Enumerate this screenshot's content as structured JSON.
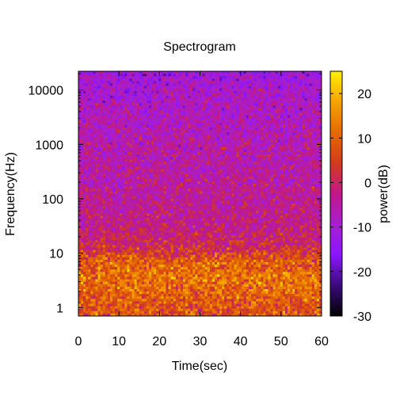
{
  "chart_data": {
    "type": "heatmap",
    "title": "Spectrogram",
    "xlabel": "Time(sec)",
    "ylabel": "Frequency(Hz)",
    "colorbar_label": "power(dB)",
    "x_range": [
      0,
      60
    ],
    "y_range": [
      0.7,
      22050
    ],
    "y_scale": "log",
    "color_range": [
      -30,
      25
    ],
    "x_ticks": [
      0,
      10,
      20,
      30,
      40,
      50,
      60
    ],
    "x_tick_labels": [
      "0",
      "10",
      "20",
      "30",
      "40",
      "50",
      "60"
    ],
    "y_ticks": [
      1,
      10,
      100,
      1000,
      10000
    ],
    "y_tick_labels": [
      "1",
      "10",
      "100",
      "1000",
      "10000"
    ],
    "colorbar_ticks": [
      -30,
      -20,
      -10,
      0,
      10,
      20
    ],
    "colorbar_tick_labels": [
      "-30",
      "-20",
      "-10",
      "0",
      "10",
      "20"
    ],
    "colormap": [
      "#000000",
      "#3b0a7a",
      "#8a17ff",
      "#a81fd0",
      "#c1188a",
      "#d23b1e",
      "#e56a00",
      "#f5a300",
      "#fff000"
    ],
    "power_profile_db": {
      "frequency_hz": [
        1,
        3,
        7,
        12,
        25,
        100,
        1000,
        10000,
        22050
      ],
      "mean_power_db": [
        8,
        12,
        10,
        2,
        -2,
        -4,
        -6,
        -9,
        -12
      ]
    },
    "grid": false,
    "legend": "colorbar-right"
  }
}
